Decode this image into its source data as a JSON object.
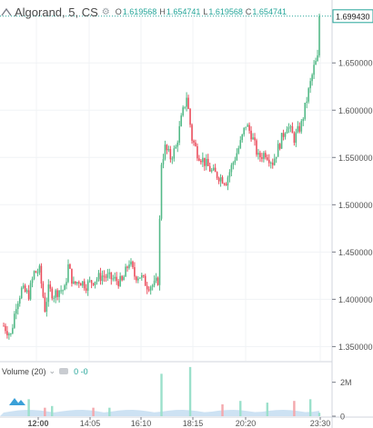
{
  "legend": {
    "symbol": "Algorand, 5, CS",
    "settings_icon": "gear-icon",
    "collapse_icon": "collapse-arrow-icon",
    "o_label": "O",
    "o_value": "1.619568",
    "h_label": "H",
    "h_value": "1.654741",
    "l_label": "L",
    "l_value": "1.619568",
    "c_label": "C",
    "c_value": "1.654741"
  },
  "volume_legend": {
    "name": "Volume (20)",
    "values": "0  -0",
    "visibility_icon": "eye-icon"
  },
  "price_scale": {
    "ticks": [
      "1.650000",
      "1.600000",
      "1.550000",
      "1.500000",
      "1.450000",
      "1.400000",
      "1.350000"
    ],
    "current_price_label": "1.699430"
  },
  "volume_scale": {
    "ticks": [
      "2M",
      "0"
    ]
  },
  "time_axis": {
    "ticks": [
      "12:00",
      "14:05",
      "16:10",
      "18:15",
      "20:20",
      "23:30"
    ]
  },
  "colors": {
    "up": "#26a69a",
    "down": "#ef5350",
    "up_candle": "#53b987",
    "down_candle": "#eb4d5c",
    "volume_up": "#9be0cb",
    "volume_down": "#f4a8ad",
    "volume_ma": "#b8d5ee",
    "grid": "#f0f3f5",
    "axis": "#555555"
  },
  "chart_data": {
    "type": "candlestick",
    "price_axis": {
      "ylim": [
        1.335,
        1.705
      ]
    },
    "current_price": 1.69943,
    "x_ticks": [
      "12:00",
      "14:05",
      "16:10",
      "18:15",
      "20:20",
      "23:30"
    ],
    "y_ticks": [
      1.35,
      1.4,
      1.45,
      1.5,
      1.55,
      1.6,
      1.65
    ],
    "close_path": [
      [
        0,
        1.372
      ],
      [
        4,
        1.362
      ],
      [
        7,
        1.395
      ],
      [
        10,
        1.41
      ],
      [
        14,
        1.405
      ],
      [
        17,
        1.428
      ],
      [
        20,
        1.43
      ],
      [
        23,
        1.39
      ],
      [
        25,
        1.41
      ],
      [
        28,
        1.405
      ],
      [
        31,
        1.41
      ],
      [
        34,
        1.41
      ],
      [
        36,
        1.435
      ],
      [
        39,
        1.415
      ],
      [
        42,
        1.42
      ],
      [
        46,
        1.415
      ],
      [
        50,
        1.42
      ],
      [
        55,
        1.425
      ],
      [
        60,
        1.422
      ],
      [
        66,
        1.418
      ],
      [
        70,
        1.44
      ],
      [
        73,
        1.425
      ],
      [
        76,
        1.425
      ],
      [
        80,
        1.415
      ],
      [
        84,
        1.415
      ],
      [
        86,
        1.42
      ],
      [
        88,
        1.545
      ],
      [
        90,
        1.56
      ],
      [
        93,
        1.55
      ],
      [
        96,
        1.56
      ],
      [
        99,
        1.59
      ],
      [
        102,
        1.615
      ],
      [
        105,
        1.57
      ],
      [
        108,
        1.555
      ],
      [
        112,
        1.545
      ],
      [
        116,
        1.535
      ],
      [
        120,
        1.53
      ],
      [
        124,
        1.525
      ],
      [
        128,
        1.545
      ],
      [
        132,
        1.565
      ],
      [
        135,
        1.585
      ],
      [
        138,
        1.575
      ],
      [
        142,
        1.55
      ],
      [
        146,
        1.555
      ],
      [
        150,
        1.545
      ],
      [
        154,
        1.565
      ],
      [
        158,
        1.585
      ],
      [
        162,
        1.57
      ],
      [
        166,
        1.585
      ],
      [
        170,
        1.62
      ],
      [
        173,
        1.645
      ],
      [
        175,
        1.6545
      ],
      [
        176,
        1.6994
      ]
    ],
    "volume": {
      "ylim": [
        0,
        3000000
      ],
      "bars": [
        {
          "x": 14,
          "v": 1000000,
          "dir": "up"
        },
        {
          "x": 23,
          "v": 500000,
          "dir": "down"
        },
        {
          "x": 27,
          "v": 600000,
          "dir": "up"
        },
        {
          "x": 50,
          "v": 500000,
          "dir": "down"
        },
        {
          "x": 59,
          "v": 500000,
          "dir": "up"
        },
        {
          "x": 88,
          "v": 2500000,
          "dir": "up"
        },
        {
          "x": 104,
          "v": 2900000,
          "dir": "up"
        },
        {
          "x": 122,
          "v": 700000,
          "dir": "down"
        },
        {
          "x": 132,
          "v": 900000,
          "dir": "up"
        },
        {
          "x": 147,
          "v": 800000,
          "dir": "up"
        },
        {
          "x": 162,
          "v": 900000,
          "dir": "down"
        },
        {
          "x": 171,
          "v": 1000000,
          "dir": "up"
        },
        {
          "x": 176,
          "v": 200000,
          "dir": "up"
        }
      ]
    }
  }
}
